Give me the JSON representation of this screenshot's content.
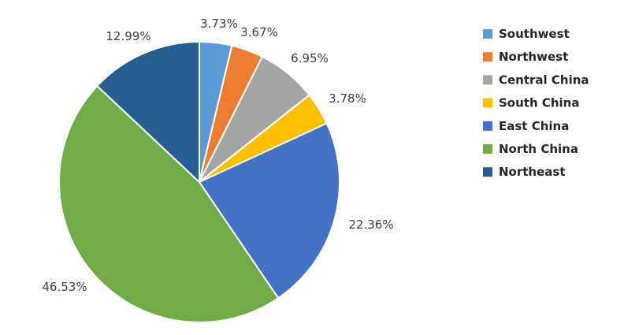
{
  "chart_data": {
    "type": "pie",
    "title": "",
    "start_angle_deg": 0,
    "direction": "clockwise",
    "legend_position": "right",
    "data_labels_format": "percent",
    "slices": [
      {
        "name": "Southwest",
        "value": 3.73,
        "label": "3.73%",
        "color": "#5B9BD5"
      },
      {
        "name": "Northwest",
        "value": 3.67,
        "label": "3.67%",
        "color": "#ED7D31"
      },
      {
        "name": "Central China",
        "value": 6.95,
        "label": "6.95%",
        "color": "#A5A5A5"
      },
      {
        "name": "South China",
        "value": 3.78,
        "label": "3.78%",
        "color": "#FFC000"
      },
      {
        "name": "East China",
        "value": 22.36,
        "label": "22.36%",
        "color": "#4472C4"
      },
      {
        "name": "North China",
        "value": 46.53,
        "label": "46.53%",
        "color": "#70AD47"
      },
      {
        "name": "Northeast",
        "value": 12.99,
        "label": "12.99%",
        "color": "#255E91"
      }
    ]
  }
}
